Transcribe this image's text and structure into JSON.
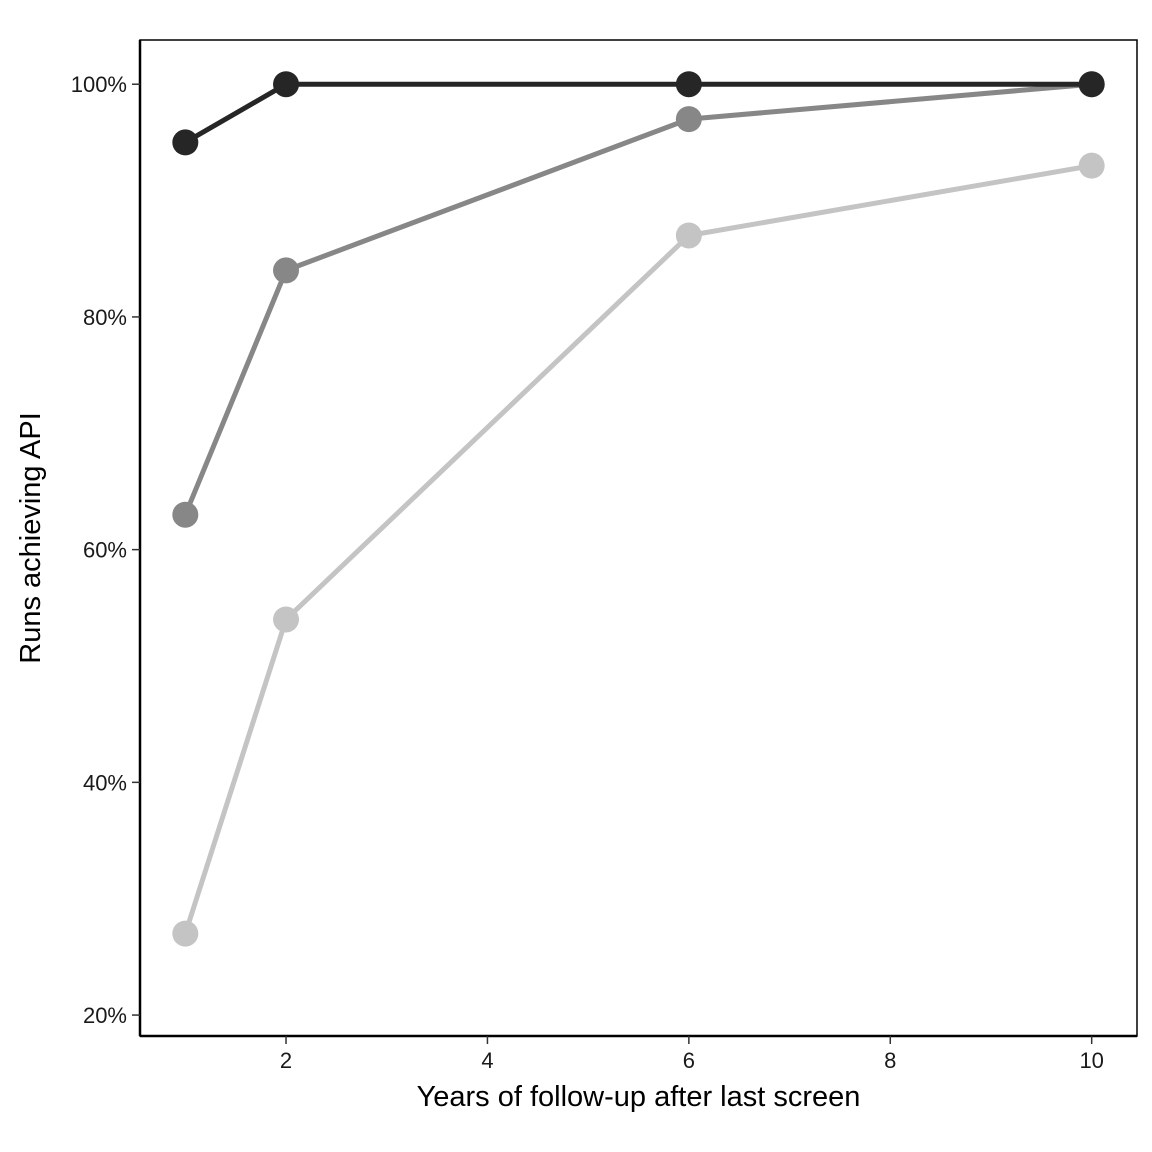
{
  "chart_data": {
    "type": "line",
    "title": "",
    "xlabel": "Years of follow-up after last screen",
    "ylabel": "Runs achieving API",
    "x": [
      1,
      2,
      6,
      10
    ],
    "xlim": [
      0.55,
      10.45
    ],
    "ylim": [
      18.2,
      103.8
    ],
    "x_ticks": [
      2,
      4,
      6,
      8,
      10
    ],
    "y_ticks": [
      20,
      40,
      60,
      80,
      100
    ],
    "y_tick_suffix": "%",
    "grid": false,
    "legend": "none",
    "series": [
      {
        "values": [
          95,
          100,
          100,
          100
        ],
        "color": "#262626"
      },
      {
        "values": [
          63,
          84,
          97,
          100
        ],
        "color": "#878787"
      },
      {
        "values": [
          27,
          54,
          87,
          93
        ],
        "color": "#c4c4c4"
      }
    ]
  }
}
